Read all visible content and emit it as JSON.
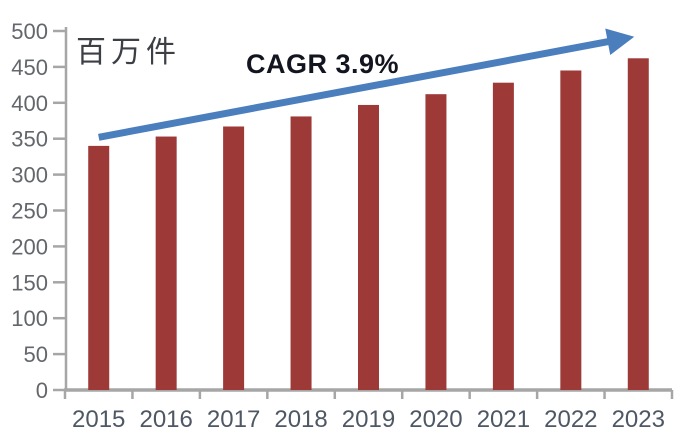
{
  "chart_data": {
    "type": "bar",
    "title": "",
    "unit_label": "百万件",
    "categories": [
      "2015",
      "2016",
      "2017",
      "2018",
      "2019",
      "2020",
      "2021",
      "2022",
      "2023"
    ],
    "values": [
      340,
      353,
      367,
      381,
      397,
      412,
      428,
      445,
      462
    ],
    "xlabel": "",
    "ylabel": "百万件",
    "ylim": [
      0,
      500
    ],
    "ytick_step": 50,
    "yticks": [
      0,
      50,
      100,
      150,
      200,
      250,
      300,
      350,
      400,
      450,
      500
    ],
    "grid": false,
    "legend": "none",
    "trend_arrow": {
      "label": "CAGR 3.9%",
      "start": {
        "category_index": 0,
        "value": 352
      },
      "end": {
        "category_index": 8,
        "value": 492
      }
    },
    "colors": {
      "bar": "#9d3a37",
      "arrow": "#4b7ebd",
      "axis_line": "#a6a6a6",
      "y_tick_label": "#63676c",
      "x_tick_label": "#4e5865",
      "annotation_text": "#12141f",
      "unit_text": "#3c3f44",
      "background": "#ffffff"
    }
  }
}
